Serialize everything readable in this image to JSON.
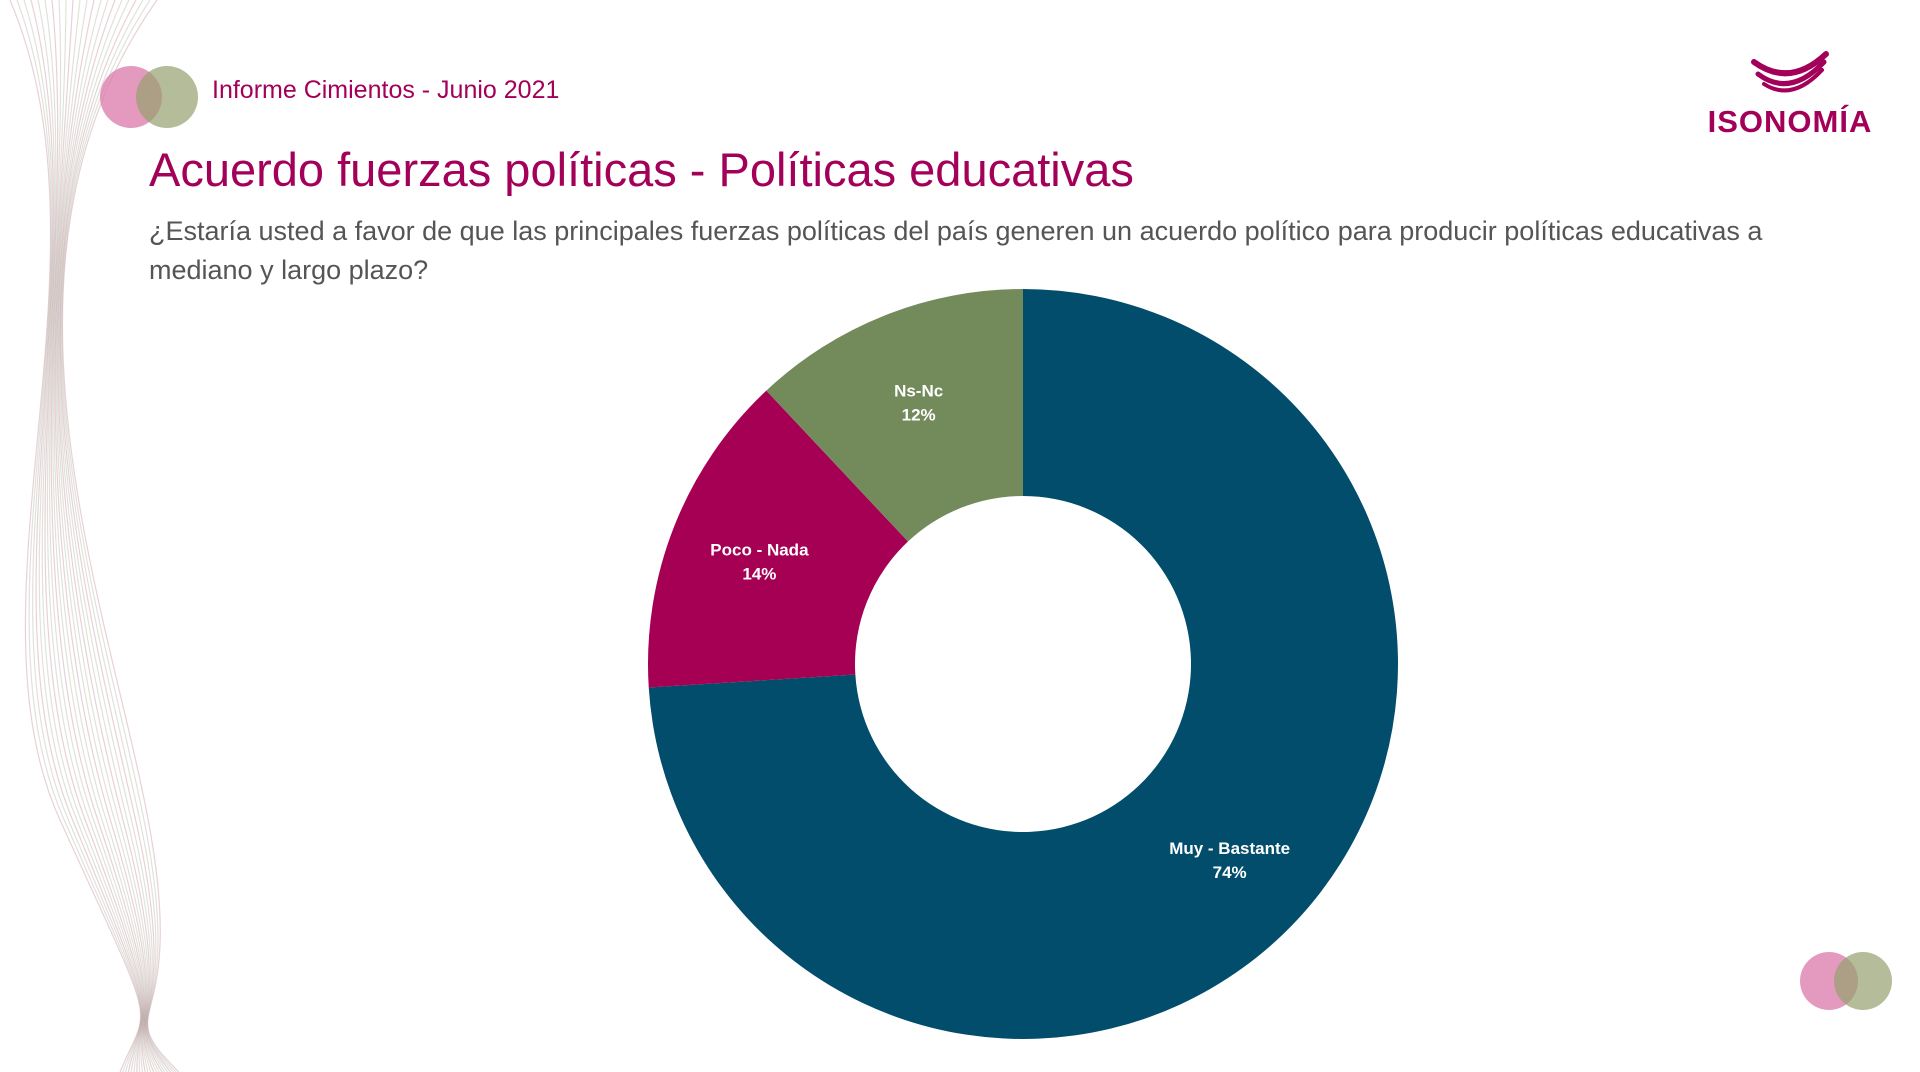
{
  "header": {
    "report_label": "Informe Cimientos - Junio 2021",
    "brand_name": "ISONOMÍA",
    "brand_icon": "isonomia-arcs-logo"
  },
  "slide": {
    "title": "Acuerdo fuerzas políticas - Políticas educativas",
    "question": "¿Estaría usted a favor de que las principales fuerzas políticas del país generen un acuerdo político para producir políticas educativas a mediano y largo plazo?"
  },
  "colors": {
    "brand": "#a3005a",
    "text_gray": "#555555",
    "circle_pink": "#db78aa",
    "circle_olive": "#96a06e"
  },
  "chart_data": {
    "type": "pie",
    "variant": "donut",
    "start": "top",
    "direction": "clockwise",
    "slices": [
      {
        "label": "Muy - Bastante",
        "value": 74,
        "display": "74%",
        "color": "#024d6b"
      },
      {
        "label": "Poco - Nada",
        "value": 14,
        "display": "14%",
        "color": "#a50054"
      },
      {
        "label": "Ns-Nc",
        "value": 12,
        "display": "12%",
        "color": "#738a5a"
      }
    ],
    "legend": "none",
    "labels": "inside"
  }
}
